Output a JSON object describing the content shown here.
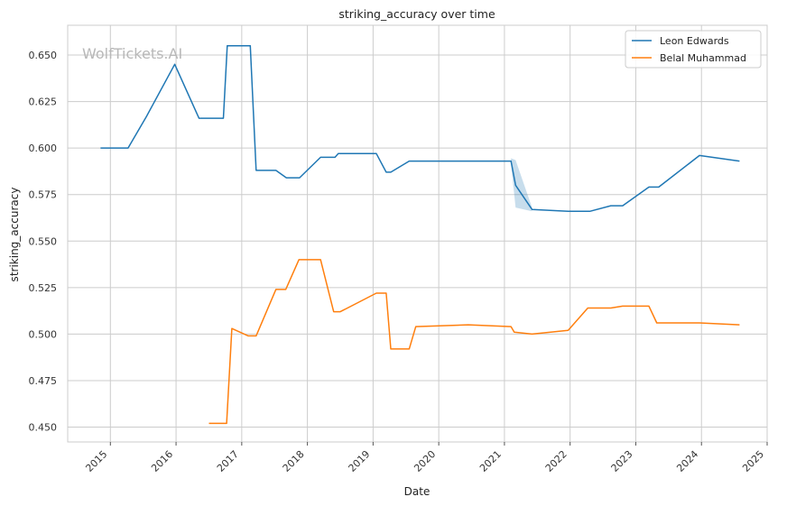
{
  "chart_data": {
    "type": "line",
    "title": "striking_accuracy over time",
    "xlabel": "Date",
    "ylabel": "striking_accuracy",
    "watermark": "WolfTickets.AI",
    "xlim": [
      2014.35,
      2025.0
    ],
    "ylim": [
      0.442,
      0.666
    ],
    "x_ticks": [
      2015,
      2016,
      2017,
      2018,
      2019,
      2020,
      2021,
      2022,
      2023,
      2024,
      2025
    ],
    "x_tick_labels": [
      "2015",
      "2016",
      "2017",
      "2018",
      "2019",
      "2020",
      "2021",
      "2022",
      "2023",
      "2024",
      "2025"
    ],
    "y_ticks": [
      0.45,
      0.475,
      0.5,
      0.525,
      0.55,
      0.575,
      0.6,
      0.625,
      0.65
    ],
    "y_tick_labels": [
      "0.450",
      "0.475",
      "0.500",
      "0.525",
      "0.550",
      "0.575",
      "0.600",
      "0.625",
      "0.650"
    ],
    "grid": true,
    "legend_position": "top-right",
    "series": [
      {
        "name": "Leon Edwards",
        "color": "#1f77b4",
        "points": [
          [
            2014.85,
            0.6
          ],
          [
            2015.27,
            0.6
          ],
          [
            2015.55,
            0.617
          ],
          [
            2015.98,
            0.645
          ],
          [
            2016.35,
            0.616
          ],
          [
            2016.72,
            0.616
          ],
          [
            2016.78,
            0.655
          ],
          [
            2017.13,
            0.655
          ],
          [
            2017.22,
            0.588
          ],
          [
            2017.52,
            0.588
          ],
          [
            2017.68,
            0.584
          ],
          [
            2017.88,
            0.584
          ],
          [
            2018.2,
            0.595
          ],
          [
            2018.42,
            0.595
          ],
          [
            2018.47,
            0.597
          ],
          [
            2019.05,
            0.597
          ],
          [
            2019.2,
            0.587
          ],
          [
            2019.27,
            0.587
          ],
          [
            2019.55,
            0.593
          ],
          [
            2021.1,
            0.593
          ],
          [
            2021.17,
            0.58
          ],
          [
            2021.42,
            0.567
          ],
          [
            2021.97,
            0.566
          ],
          [
            2022.3,
            0.566
          ],
          [
            2022.62,
            0.569
          ],
          [
            2022.8,
            0.569
          ],
          [
            2023.2,
            0.579
          ],
          [
            2023.35,
            0.579
          ],
          [
            2023.97,
            0.596
          ],
          [
            2024.58,
            0.593
          ]
        ],
        "band": [
          [
            2021.1,
            0.5945,
            0.5915
          ],
          [
            2021.17,
            0.5935,
            0.568
          ],
          [
            2021.42,
            0.568,
            0.566
          ]
        ]
      },
      {
        "name": "Belal Muhammad",
        "color": "#ff7f0e",
        "points": [
          [
            2016.5,
            0.452
          ],
          [
            2016.77,
            0.452
          ],
          [
            2016.85,
            0.503
          ],
          [
            2017.1,
            0.499
          ],
          [
            2017.22,
            0.499
          ],
          [
            2017.52,
            0.524
          ],
          [
            2017.67,
            0.524
          ],
          [
            2017.87,
            0.54
          ],
          [
            2018.2,
            0.54
          ],
          [
            2018.4,
            0.512
          ],
          [
            2018.5,
            0.512
          ],
          [
            2019.05,
            0.522
          ],
          [
            2019.2,
            0.522
          ],
          [
            2019.27,
            0.492
          ],
          [
            2019.55,
            0.492
          ],
          [
            2019.65,
            0.504
          ],
          [
            2020.45,
            0.505
          ],
          [
            2021.1,
            0.504
          ],
          [
            2021.15,
            0.501
          ],
          [
            2021.42,
            0.5
          ],
          [
            2021.97,
            0.502
          ],
          [
            2022.27,
            0.514
          ],
          [
            2022.62,
            0.514
          ],
          [
            2022.8,
            0.515
          ],
          [
            2023.2,
            0.515
          ],
          [
            2023.32,
            0.506
          ],
          [
            2023.97,
            0.506
          ],
          [
            2024.58,
            0.505
          ]
        ]
      }
    ]
  }
}
